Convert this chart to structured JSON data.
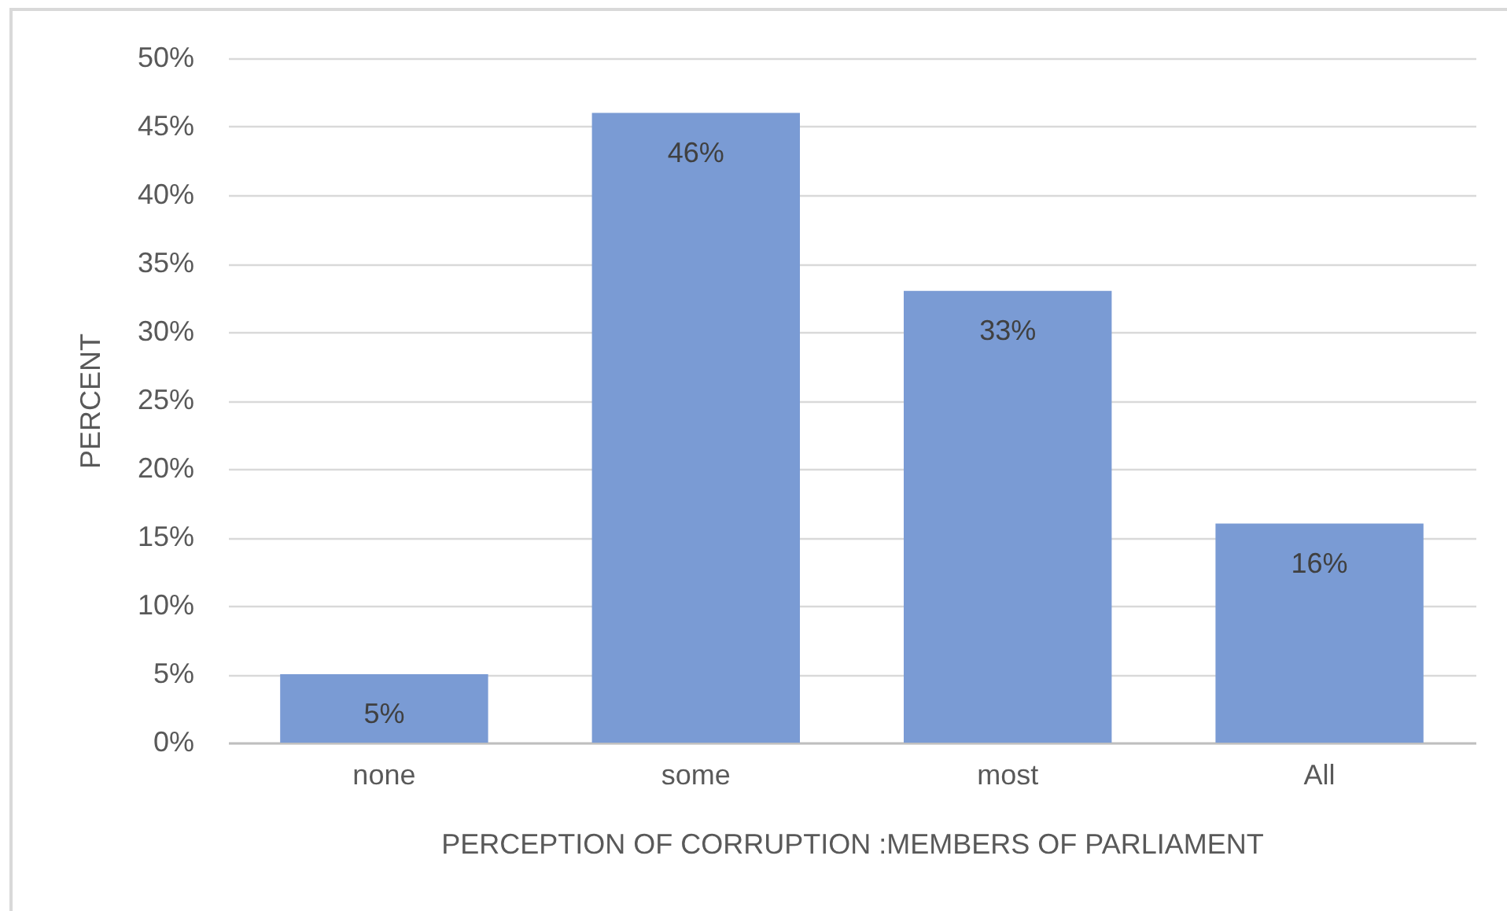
{
  "chart_data": {
    "type": "bar",
    "categories": [
      "none",
      "some",
      "most",
      "All"
    ],
    "values": [
      5,
      46,
      33,
      16
    ],
    "color": "#7a9bd4",
    "value_labels": [
      "5%",
      "46%",
      "33%",
      "16%"
    ],
    "xlabel": "PERCEPTION OF CORRUPTION :MEMBERS OF PARLIAMENT",
    "ylabel": "PERCENT",
    "ylim": [
      0,
      50
    ],
    "yticks": [
      {
        "value": 0,
        "label": "0%"
      },
      {
        "value": 5,
        "label": "5%"
      },
      {
        "value": 10,
        "label": "10%"
      },
      {
        "value": 15,
        "label": "15%"
      },
      {
        "value": 20,
        "label": "20%"
      },
      {
        "value": 25,
        "label": "25%"
      },
      {
        "value": 30,
        "label": "30%"
      },
      {
        "value": 35,
        "label": "35%"
      },
      {
        "value": 40,
        "label": "40%"
      },
      {
        "value": 45,
        "label": "45%"
      },
      {
        "value": 50,
        "label": "50%"
      }
    ],
    "grid": "y"
  }
}
